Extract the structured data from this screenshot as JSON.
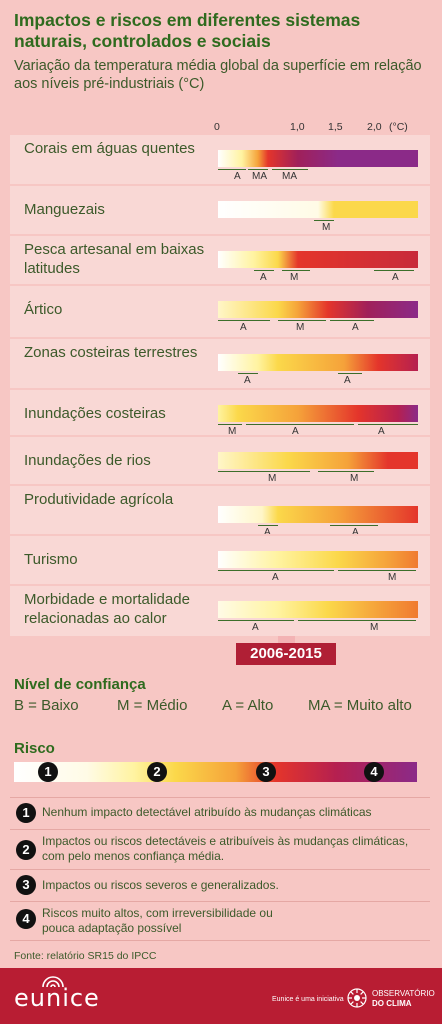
{
  "title": "Impactos e riscos em diferentes sistemas naturais, controlados e sociais",
  "subtitle": "Variação da temperatura média global da superfície em relação aos níveis pré-industriais (°C)",
  "axis_ticks": [
    "0",
    "1,0",
    "1,5",
    "2,0",
    "(°C)"
  ],
  "period": "2006-2015",
  "rows": [
    {
      "label": "Corais em águas quentes",
      "stops": [
        [
          0,
          "#ffffff"
        ],
        [
          0.12,
          "#fff3a0"
        ],
        [
          0.2,
          "#f5a23a"
        ],
        [
          0.25,
          "#e4352b"
        ],
        [
          0.4,
          "#a0205a"
        ],
        [
          0.6,
          "#8b2a88"
        ],
        [
          1,
          "#8b2a88"
        ]
      ],
      "conf": [
        {
          "text": "A",
          "x": 0.1
        },
        {
          "text": "MA",
          "x": 0.19
        },
        {
          "text": "MA",
          "x": 0.34
        }
      ],
      "lines": [
        [
          0,
          0.14
        ],
        [
          0.15,
          0.25
        ],
        [
          0.27,
          0.45
        ]
      ]
    },
    {
      "label": "Manguezais",
      "stops": [
        [
          0,
          "#ffffff"
        ],
        [
          0.5,
          "#fffbe6"
        ],
        [
          0.58,
          "#fbd84a"
        ],
        [
          1,
          "#fbd84a"
        ]
      ],
      "conf": [
        {
          "text": "M",
          "x": 0.54
        }
      ],
      "lines": [
        [
          0.48,
          0.58
        ]
      ]
    },
    {
      "label": "Pesca artesanal em baixas latitudes",
      "stops": [
        [
          0,
          "#ffffff"
        ],
        [
          0.18,
          "#fff3a0"
        ],
        [
          0.3,
          "#fbd84a"
        ],
        [
          0.4,
          "#e4352b"
        ],
        [
          1,
          "#c82a3a"
        ]
      ],
      "conf": [
        {
          "text": "A",
          "x": 0.23
        },
        {
          "text": "M",
          "x": 0.38
        },
        {
          "text": "A",
          "x": 0.89
        }
      ],
      "lines": [
        [
          0.18,
          0.28
        ],
        [
          0.32,
          0.46
        ],
        [
          0.78,
          0.98
        ]
      ]
    },
    {
      "label": "Ártico",
      "stops": [
        [
          0,
          "#fff6c8"
        ],
        [
          0.3,
          "#fbd84a"
        ],
        [
          0.4,
          "#f5a23a"
        ],
        [
          0.55,
          "#e4352b"
        ],
        [
          0.75,
          "#a0205a"
        ],
        [
          1,
          "#8b2a88"
        ]
      ],
      "conf": [
        {
          "text": "A",
          "x": 0.13
        },
        {
          "text": "M",
          "x": 0.41
        },
        {
          "text": "A",
          "x": 0.69
        }
      ],
      "lines": [
        [
          0,
          0.26
        ],
        [
          0.3,
          0.54
        ],
        [
          0.56,
          0.78
        ]
      ]
    },
    {
      "label": "Zonas costeiras terrestres",
      "stops": [
        [
          0,
          "#ffffff"
        ],
        [
          0.2,
          "#fff3a0"
        ],
        [
          0.3,
          "#fbd84a"
        ],
        [
          0.63,
          "#f5a23a"
        ],
        [
          0.8,
          "#e4352b"
        ],
        [
          1,
          "#b52050"
        ]
      ],
      "conf": [
        {
          "text": "A",
          "x": 0.15
        },
        {
          "text": "A",
          "x": 0.65
        }
      ],
      "lines": [
        [
          0.1,
          0.2
        ],
        [
          0.6,
          0.72
        ]
      ]
    },
    {
      "label": "Inundações costeiras",
      "stops": [
        [
          0,
          "#fff3a0"
        ],
        [
          0.1,
          "#fbd84a"
        ],
        [
          0.4,
          "#f5a23a"
        ],
        [
          0.7,
          "#e4352b"
        ],
        [
          0.9,
          "#b52050"
        ],
        [
          1,
          "#8b2a88"
        ]
      ],
      "conf": [
        {
          "text": "M",
          "x": 0.07
        },
        {
          "text": "A",
          "x": 0.39
        },
        {
          "text": "A",
          "x": 0.82
        }
      ],
      "lines": [
        [
          0,
          0.12
        ],
        [
          0.14,
          0.68
        ],
        [
          0.7,
          1
        ]
      ]
    },
    {
      "label": "Inundações de rios",
      "stops": [
        [
          0,
          "#fff6c8"
        ],
        [
          0.35,
          "#fbd84a"
        ],
        [
          0.65,
          "#f5a23a"
        ],
        [
          0.85,
          "#e4352b"
        ],
        [
          1,
          "#e4352b"
        ]
      ],
      "conf": [
        {
          "text": "M",
          "x": 0.27
        },
        {
          "text": "M",
          "x": 0.68
        }
      ],
      "lines": [
        [
          0,
          0.46
        ],
        [
          0.5,
          0.78
        ]
      ]
    },
    {
      "label": "Produtividade agrícola",
      "stops": [
        [
          0,
          "#ffffff"
        ],
        [
          0.22,
          "#fff6c8"
        ],
        [
          0.3,
          "#fbd84a"
        ],
        [
          0.6,
          "#f5a23a"
        ],
        [
          1,
          "#e4352b"
        ]
      ],
      "conf": [
        {
          "text": "A",
          "x": 0.25
        },
        {
          "text": "A",
          "x": 0.69
        }
      ],
      "lines": [
        [
          0.2,
          0.3
        ],
        [
          0.56,
          0.8
        ]
      ]
    },
    {
      "label": "Turismo",
      "stops": [
        [
          0,
          "#ffffff"
        ],
        [
          0.3,
          "#fff3a0"
        ],
        [
          0.6,
          "#fbd84a"
        ],
        [
          0.85,
          "#f5a23a"
        ],
        [
          1,
          "#f07a30"
        ]
      ],
      "conf": [
        {
          "text": "A",
          "x": 0.29
        },
        {
          "text": "M",
          "x": 0.87
        }
      ],
      "lines": [
        [
          0,
          0.58
        ],
        [
          0.6,
          0.99
        ]
      ]
    },
    {
      "label": "Morbidade e mortalidade relacionadas ao calor",
      "stops": [
        [
          0,
          "#fffbe6"
        ],
        [
          0.3,
          "#fff3a0"
        ],
        [
          0.55,
          "#fbd84a"
        ],
        [
          0.8,
          "#f5a23a"
        ],
        [
          1,
          "#f07a30"
        ]
      ],
      "conf": [
        {
          "text": "A",
          "x": 0.19
        },
        {
          "text": "M",
          "x": 0.78
        }
      ],
      "lines": [
        [
          0,
          0.38
        ],
        [
          0.4,
          0.99
        ]
      ]
    }
  ],
  "confidence": {
    "title": "Nível de confiança",
    "items": [
      "B = Baixo",
      "M = Médio",
      "A = Alto",
      "MA = Muito alto"
    ]
  },
  "risk": {
    "title": "Risco",
    "levels": [
      {
        "num": "1",
        "text": "Nenhum impacto detectável atribuído às mudanças climáticas"
      },
      {
        "num": "2",
        "text": "Impactos ou riscos detectáveis e atribuíveis às mudanças climáticas, com pelo menos confiança média."
      },
      {
        "num": "3",
        "text": "Impactos ou riscos severos e generalizados."
      },
      {
        "num": "4",
        "text": "Riscos muito altos, com irreversibilidade ou pouca adaptação possível"
      }
    ]
  },
  "source": "Fonte: relatório SR15 do IPCC",
  "footer": {
    "logo": "eunice",
    "initiative": "Eunice é uma iniciativa",
    "org_line1": "OBSERVATÓRIO",
    "org_line2": "DO CLIMA"
  },
  "colors": {
    "background": "#f7c7c4",
    "footer": "#b81d33",
    "title": "#2f6b1e"
  }
}
